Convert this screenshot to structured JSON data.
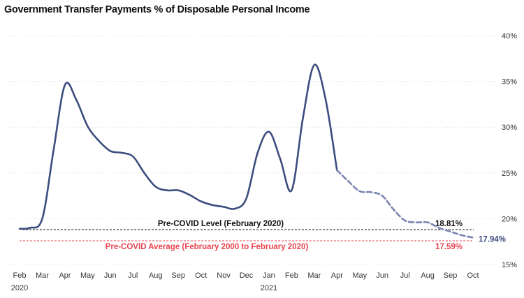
{
  "chart_data": {
    "type": "line",
    "title": "Government Transfer Payments % of Disposable Personal Income",
    "x_ticks": [
      "Feb",
      "Mar",
      "Apr",
      "May",
      "Jun",
      "Jul",
      "Aug",
      "Sep",
      "Oct",
      "Nov",
      "Dec",
      "Jan",
      "Feb",
      "Mar",
      "Apr",
      "May",
      "Jun",
      "Jul",
      "Aug",
      "Sep",
      "Oct"
    ],
    "year_labels": [
      {
        "tick_index": 0,
        "text": "2020"
      },
      {
        "tick_index": 11,
        "text": "2021"
      }
    ],
    "y_ticks": [
      "15%",
      "20%",
      "25%",
      "30%",
      "35%",
      "40%"
    ],
    "ylim": [
      15,
      40
    ],
    "grid": true,
    "series": [
      {
        "style": "solid",
        "color": "#3d4d7e",
        "points": [
          [
            0,
            18.9
          ],
          [
            0.45,
            19.0
          ],
          [
            1,
            20.0
          ],
          [
            1.5,
            27.5
          ],
          [
            2,
            34.6
          ],
          [
            2.5,
            33.0
          ],
          [
            3,
            30.1
          ],
          [
            3.5,
            28.5
          ],
          [
            4,
            27.4
          ],
          [
            4.5,
            27.2
          ],
          [
            5,
            26.8
          ],
          [
            5.5,
            25.0
          ],
          [
            6,
            23.5
          ],
          [
            6.5,
            23.1
          ],
          [
            7,
            23.1
          ],
          [
            7.5,
            22.6
          ],
          [
            8,
            21.9
          ],
          [
            8.5,
            21.5
          ],
          [
            9,
            21.3
          ],
          [
            9.5,
            21.1
          ],
          [
            10,
            22.2
          ],
          [
            10.5,
            27.2
          ],
          [
            11,
            29.5
          ],
          [
            11.5,
            26.5
          ],
          [
            12,
            23.1
          ],
          [
            12.5,
            31.0
          ],
          [
            13,
            36.8
          ],
          [
            13.5,
            33.0
          ],
          [
            14,
            25.3
          ]
        ]
      },
      {
        "style": "dashed",
        "color": "#7b85b0",
        "points": [
          [
            14,
            25.3
          ],
          [
            14.5,
            24.1
          ],
          [
            15,
            23.0
          ],
          [
            15.5,
            22.9
          ],
          [
            16,
            22.5
          ],
          [
            16.5,
            21.0
          ],
          [
            17,
            19.8
          ],
          [
            17.5,
            19.6
          ],
          [
            18,
            19.6
          ],
          [
            18.5,
            19.0
          ],
          [
            19,
            18.6
          ],
          [
            19.5,
            18.2
          ],
          [
            20,
            17.94
          ]
        ],
        "end_label": "17.94%"
      }
    ],
    "reference_lines": [
      {
        "label": "Pre-COVID Level (February 2020)",
        "value_label": "18.81%",
        "value": 18.81,
        "color": "#111111",
        "text_color": "#111111"
      },
      {
        "label": "Pre-COVID Average (February 2000 to February 2020)",
        "value_label": "17.59%",
        "value": 17.59,
        "color": "#e8444f",
        "text_color": "#e8444f"
      }
    ]
  }
}
